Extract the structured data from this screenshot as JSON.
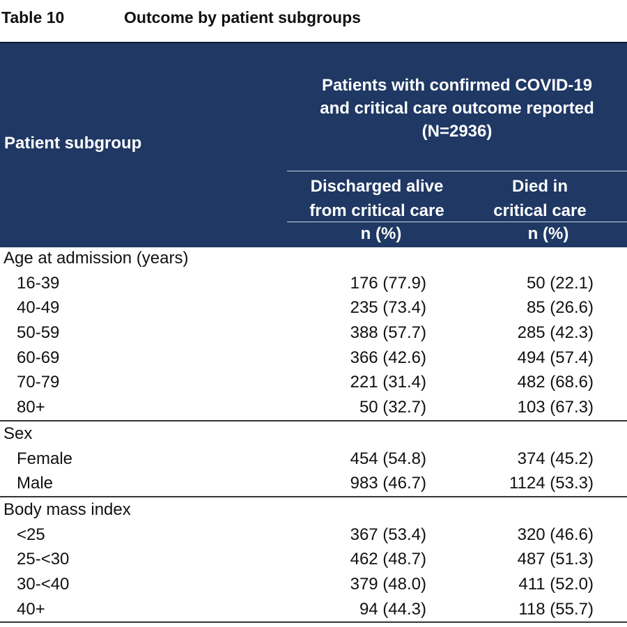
{
  "caption": {
    "label": "Table 10",
    "title": "Outcome by patient subgroups"
  },
  "header": {
    "subgroup": "Patient subgroup",
    "group_lines": [
      "Patients with confirmed COVID-19",
      "and critical care outcome reported",
      "(N=2936)"
    ],
    "col_discharged_lines": [
      "Discharged alive",
      "from critical care"
    ],
    "col_died_lines": [
      "Died in",
      "critical care"
    ],
    "unit_discharged": "n (%)",
    "unit_died": "n (%)"
  },
  "colors": {
    "header_bg": "#1f3864",
    "header_text": "#ffffff"
  },
  "sections": [
    {
      "title": "Age at admission (years)",
      "rows": [
        {
          "label": "16-39",
          "discharged": "176 (77.9)",
          "died": "50 (22.1)"
        },
        {
          "label": "40-49",
          "discharged": "235 (73.4)",
          "died": "85 (26.6)"
        },
        {
          "label": "50-59",
          "discharged": "388 (57.7)",
          "died": "285 (42.3)"
        },
        {
          "label": "60-69",
          "discharged": "366 (42.6)",
          "died": "494 (57.4)"
        },
        {
          "label": "70-79",
          "discharged": "221 (31.4)",
          "died": "482 (68.6)"
        },
        {
          "label": "80+",
          "discharged": "50 (32.7)",
          "died": "103 (67.3)"
        }
      ]
    },
    {
      "title": "Sex",
      "rows": [
        {
          "label": "Female",
          "discharged": "454 (54.8)",
          "died": "374 (45.2)"
        },
        {
          "label": "Male",
          "discharged": "983 (46.7)",
          "died": "1124 (53.3)"
        }
      ]
    },
    {
      "title": "Body mass index",
      "rows": [
        {
          "label": "<25",
          "discharged": "367 (53.4)",
          "died": "320 (46.6)"
        },
        {
          "label": "25-<30",
          "discharged": "462 (48.7)",
          "died": "487 (51.3)"
        },
        {
          "label": "30-<40",
          "discharged": "379 (48.0)",
          "died": "411 (52.0)"
        },
        {
          "label": "40+",
          "discharged": "94 (44.3)",
          "died": "118 (55.7)"
        }
      ]
    }
  ]
}
